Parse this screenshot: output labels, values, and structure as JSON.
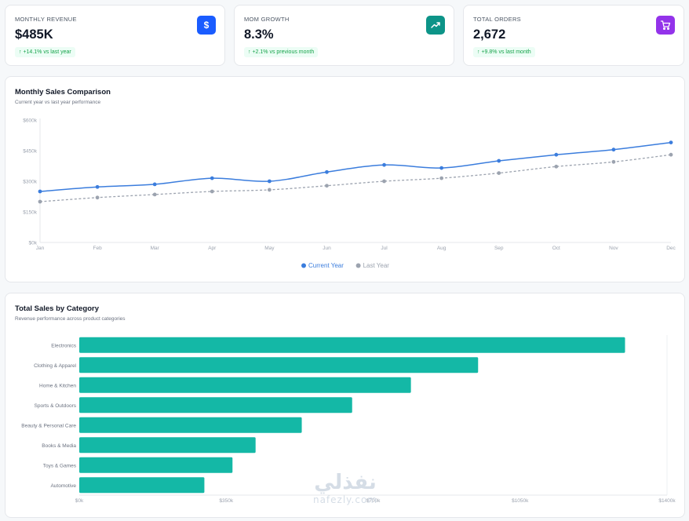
{
  "kpis": [
    {
      "label": "MONTHLY REVENUE",
      "value": "$485K",
      "change": "+14.1% vs last year",
      "icon": "dollar-icon",
      "color": "#1a5cff"
    },
    {
      "label": "MOM GROWTH",
      "value": "8.3%",
      "change": "+2.1% vs previous month",
      "icon": "trending-up-icon",
      "color": "#0d9488"
    },
    {
      "label": "TOTAL ORDERS",
      "value": "2,672",
      "change": "+9.8% vs last month",
      "icon": "cart-icon",
      "color": "#9333ea"
    }
  ],
  "sales": {
    "title": "Monthly Sales Comparison",
    "subtitle": "Current year vs last year performance"
  },
  "category": {
    "title": "Total Sales by Category",
    "subtitle": "Revenue performance across product categories"
  },
  "watermark": {
    "arabic": "نفذلي",
    "url": "nafezly.com"
  },
  "chart_data": [
    {
      "type": "line",
      "title": "Monthly Sales Comparison",
      "subtitle": "Current year vs last year performance",
      "x": [
        "Jan",
        "Feb",
        "Mar",
        "Apr",
        "May",
        "Jun",
        "Jul",
        "Aug",
        "Sep",
        "Oct",
        "Nov",
        "Dec"
      ],
      "y_ticks": [
        "$0k",
        "$150k",
        "$300k",
        "$450k",
        "$600k"
      ],
      "ylim": [
        0,
        600
      ],
      "grid": false,
      "legend": "bottom",
      "series": [
        {
          "name": "Current Year",
          "color": "#3b7ddd",
          "dashed": false,
          "values": [
            250,
            272,
            285,
            315,
            300,
            345,
            380,
            365,
            400,
            430,
            455,
            490
          ]
        },
        {
          "name": "Last Year",
          "color": "#9ca3af",
          "dashed": true,
          "values": [
            200,
            220,
            235,
            250,
            258,
            278,
            300,
            315,
            340,
            372,
            395,
            430
          ]
        }
      ]
    },
    {
      "type": "bar",
      "orientation": "horizontal",
      "title": "Total Sales by Category",
      "subtitle": "Revenue performance across product categories",
      "categories": [
        "Electronics",
        "Clothing & Apparel",
        "Home & Kitchen",
        "Sports & Outdoors",
        "Beauty & Personal Care",
        "Books & Media",
        "Toys & Games",
        "Automotive"
      ],
      "values": [
        1300,
        950,
        790,
        650,
        530,
        420,
        365,
        298
      ],
      "x_ticks": [
        "$0k",
        "$350k",
        "$700k",
        "$1050k",
        "$1400k"
      ],
      "xlim": [
        0,
        1400
      ],
      "color": "#14b8a6"
    }
  ]
}
